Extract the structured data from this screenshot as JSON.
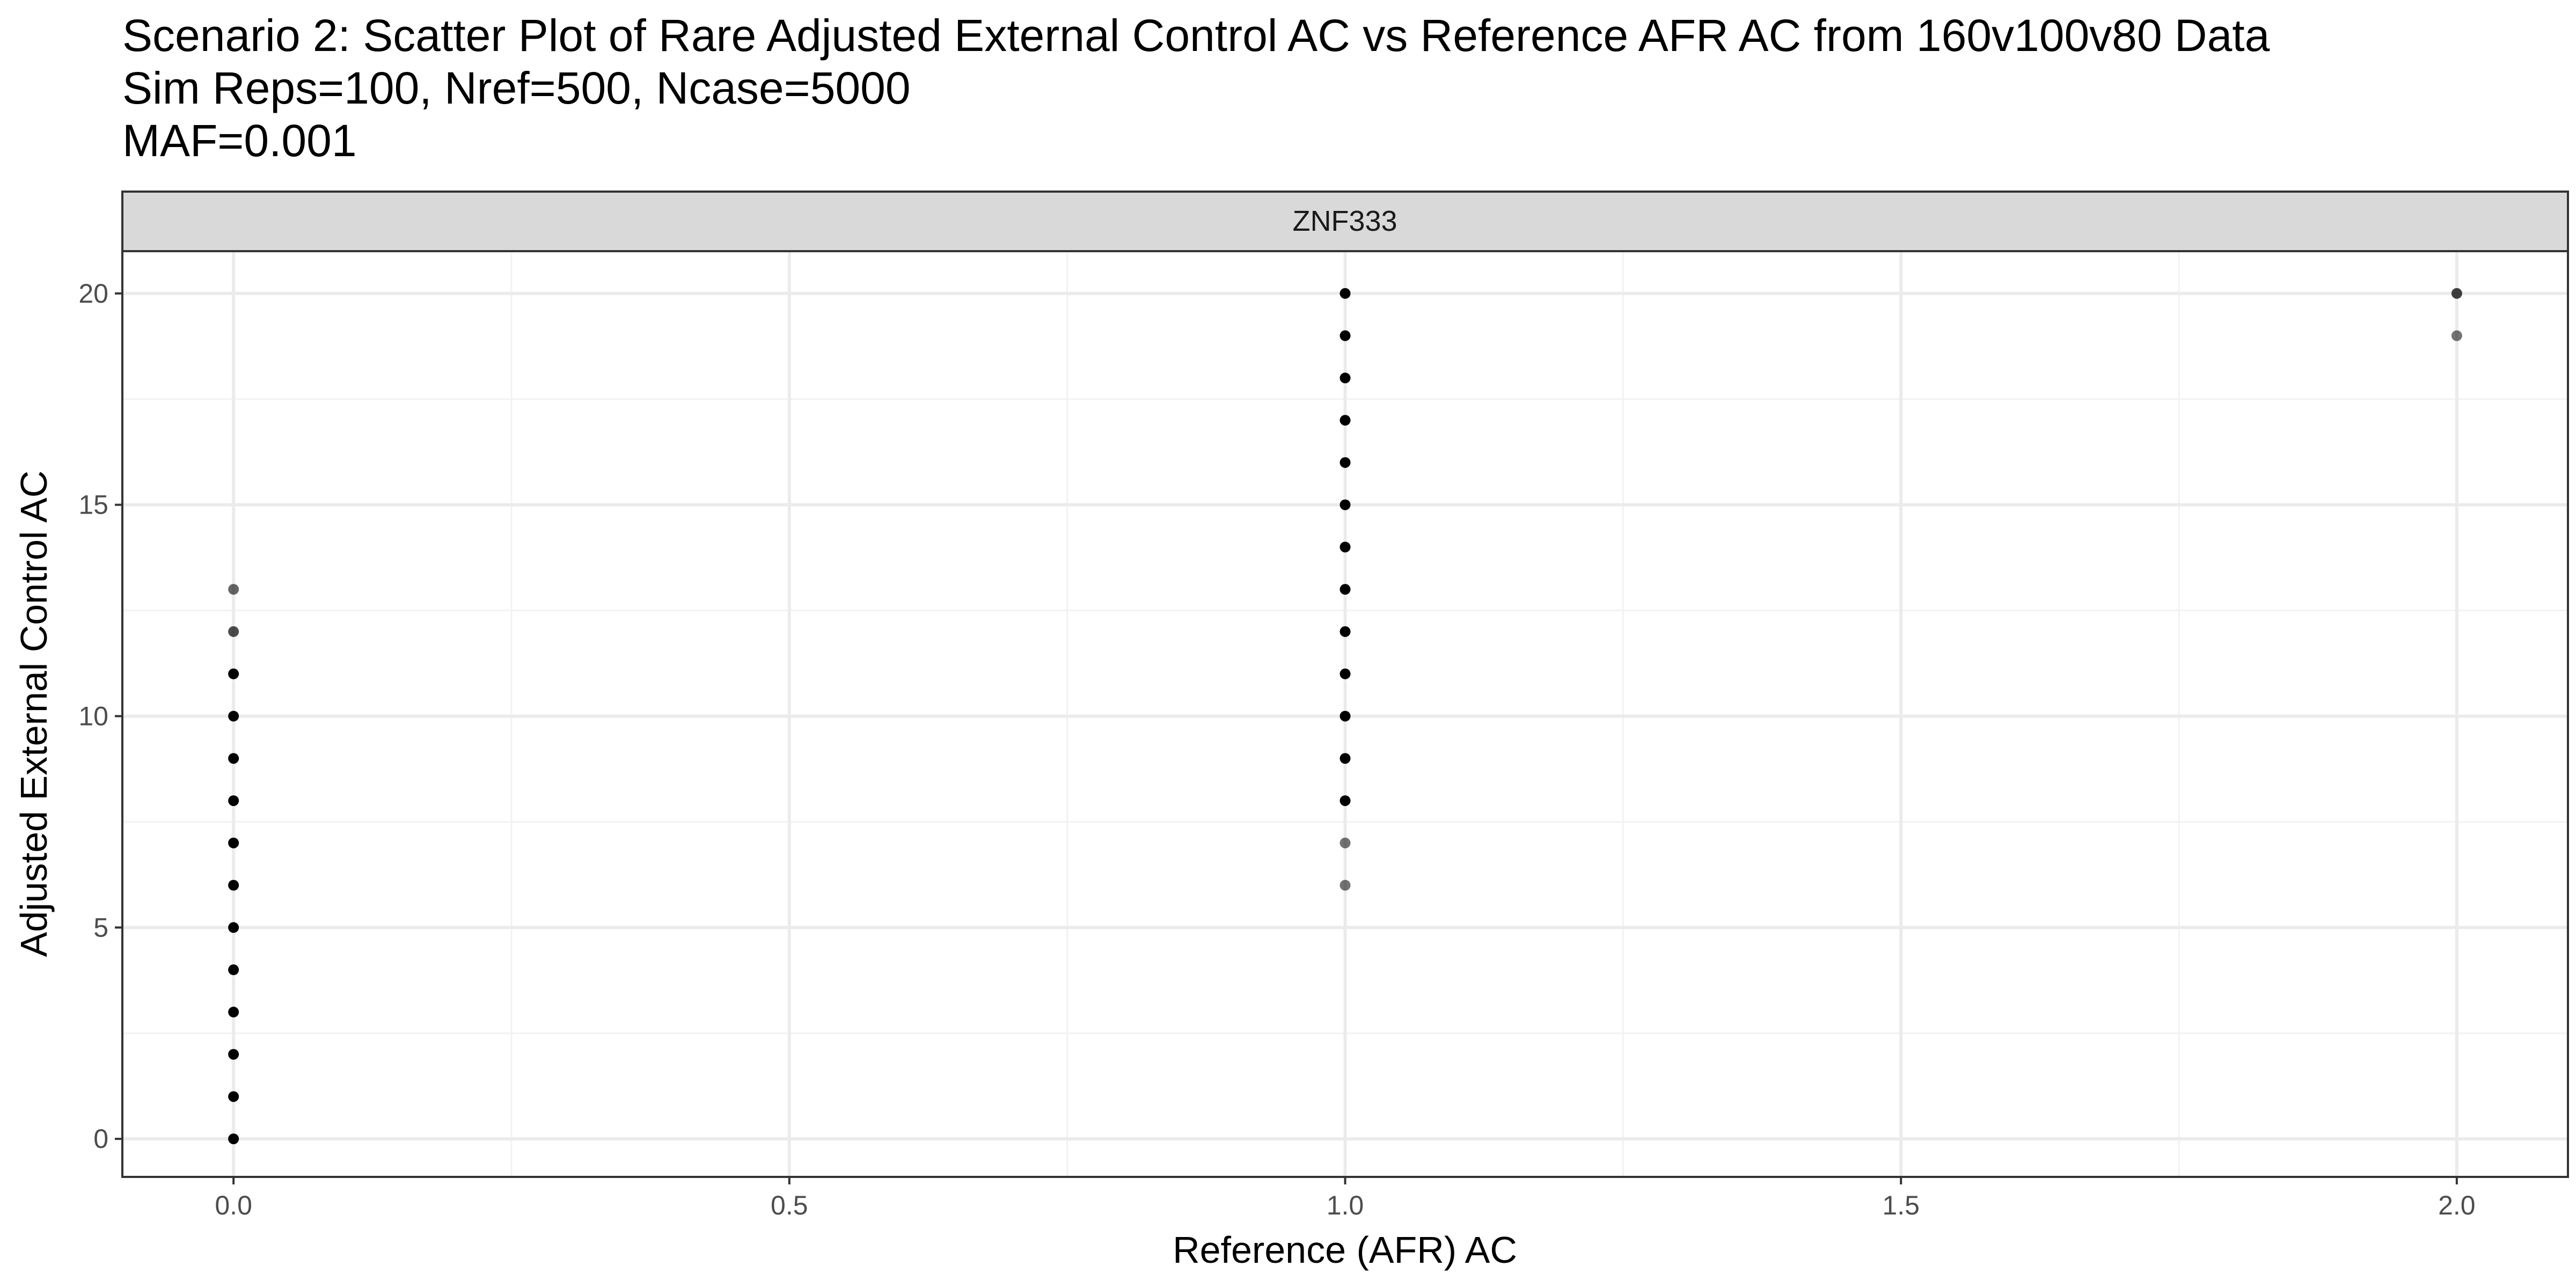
{
  "chart_data": {
    "type": "scatter",
    "title_lines": [
      "Scenario 2: Scatter Plot of Rare Adjusted External Control AC vs Reference AFR AC from 160v100v80 Data",
      "Sim Reps=100, Nref=500, Ncase=5000",
      "MAF=0.001"
    ],
    "facet_label": "ZNF333",
    "xlabel": "Reference (AFR) AC",
    "ylabel": "Adjusted External Control AC",
    "xlim": [
      -0.1,
      2.1
    ],
    "ylim": [
      -0.9,
      21.0
    ],
    "x_ticks": [
      0.0,
      0.5,
      1.0,
      1.5,
      2.0
    ],
    "x_tick_labels": [
      "0.0",
      "0.5",
      "1.0",
      "1.5",
      "2.0"
    ],
    "y_ticks": [
      0,
      5,
      10,
      15,
      20
    ],
    "y_tick_labels": [
      "0",
      "5",
      "10",
      "15",
      "20"
    ],
    "grid": true,
    "point_color": "#000000",
    "points": [
      {
        "x": 0,
        "y": 0,
        "alpha": 1.0
      },
      {
        "x": 0,
        "y": 1,
        "alpha": 1.0
      },
      {
        "x": 0,
        "y": 2,
        "alpha": 1.0
      },
      {
        "x": 0,
        "y": 3,
        "alpha": 1.0
      },
      {
        "x": 0,
        "y": 4,
        "alpha": 1.0
      },
      {
        "x": 0,
        "y": 5,
        "alpha": 1.0
      },
      {
        "x": 0,
        "y": 6,
        "alpha": 1.0
      },
      {
        "x": 0,
        "y": 7,
        "alpha": 1.0
      },
      {
        "x": 0,
        "y": 8,
        "alpha": 1.0
      },
      {
        "x": 0,
        "y": 9,
        "alpha": 1.0
      },
      {
        "x": 0,
        "y": 10,
        "alpha": 1.0
      },
      {
        "x": 0,
        "y": 11,
        "alpha": 1.0
      },
      {
        "x": 0,
        "y": 12,
        "alpha": 0.7
      },
      {
        "x": 0,
        "y": 13,
        "alpha": 0.6
      },
      {
        "x": 1,
        "y": 6,
        "alpha": 0.55
      },
      {
        "x": 1,
        "y": 7,
        "alpha": 0.55
      },
      {
        "x": 1,
        "y": 8,
        "alpha": 1.0
      },
      {
        "x": 1,
        "y": 9,
        "alpha": 1.0
      },
      {
        "x": 1,
        "y": 10,
        "alpha": 1.0
      },
      {
        "x": 1,
        "y": 11,
        "alpha": 1.0
      },
      {
        "x": 1,
        "y": 12,
        "alpha": 1.0
      },
      {
        "x": 1,
        "y": 13,
        "alpha": 1.0
      },
      {
        "x": 1,
        "y": 14,
        "alpha": 1.0
      },
      {
        "x": 1,
        "y": 15,
        "alpha": 1.0
      },
      {
        "x": 1,
        "y": 16,
        "alpha": 1.0
      },
      {
        "x": 1,
        "y": 17,
        "alpha": 1.0
      },
      {
        "x": 1,
        "y": 18,
        "alpha": 1.0
      },
      {
        "x": 1,
        "y": 19,
        "alpha": 1.0
      },
      {
        "x": 1,
        "y": 20,
        "alpha": 1.0
      },
      {
        "x": 2,
        "y": 19,
        "alpha": 0.55
      },
      {
        "x": 2,
        "y": 20,
        "alpha": 0.75
      }
    ]
  }
}
